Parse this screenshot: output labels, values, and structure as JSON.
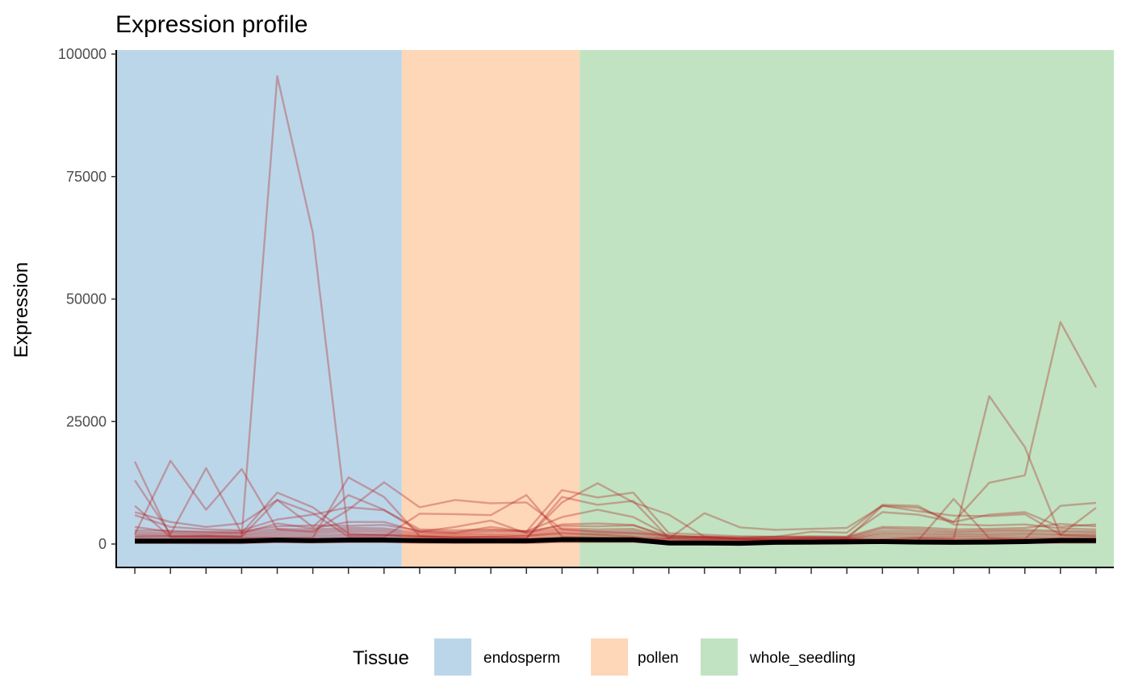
{
  "chart_data": {
    "type": "line",
    "title": "Expression profile",
    "xlabel": "",
    "ylabel": "Expression",
    "ylim": [
      -4000,
      100500
    ],
    "yticks": [
      0,
      25000,
      50000,
      75000,
      100000
    ],
    "ytick_labels": [
      "0",
      "25000",
      "50000",
      "75000",
      "100000"
    ],
    "x_positions": [
      1,
      2,
      3,
      4,
      5,
      6,
      7,
      8,
      9,
      10,
      11,
      12,
      13,
      14,
      15,
      16,
      17,
      18,
      19,
      20,
      21,
      22,
      23,
      24,
      25,
      26,
      27,
      28
    ],
    "x_tick_labels_shown": false,
    "grid": false,
    "background_bands": [
      {
        "tissue": "endosperm",
        "from": 0.5,
        "to": 8.5,
        "color": "#bcd6e9"
      },
      {
        "tissue": "pollen",
        "from": 8.5,
        "to": 13.5,
        "color": "#fdd7b8"
      },
      {
        "tissue": "whole_seedling",
        "from": 13.5,
        "to": 28.5,
        "color": "#c1e3c1"
      }
    ],
    "legend": {
      "title": "Tissue",
      "position": "bottom",
      "entries": [
        {
          "label": "endosperm",
          "color": "#bcd6e9"
        },
        {
          "label": "pollen",
          "color": "#fdd7b8"
        },
        {
          "label": "whole_seedling",
          "color": "#c1e3c1"
        }
      ]
    },
    "gene_line_color": "#b22222",
    "mean_line_color": "#000000",
    "series": [
      {
        "values": [
          1500,
          1600,
          1700,
          1500,
          95500,
          63500,
          1800,
          1900,
          1600,
          1400,
          1500,
          1700,
          2200,
          1900,
          1500,
          600,
          800,
          600,
          900,
          1000,
          1100,
          700,
          900,
          800,
          1000,
          900,
          1200,
          1100
        ]
      },
      {
        "values": [
          16800,
          1500,
          1400,
          1300,
          1200,
          1300,
          13600,
          9600,
          1600,
          1300,
          1500,
          1200,
          8500,
          12400,
          8500,
          6000,
          1500,
          1000,
          900,
          1200,
          1000,
          7800,
          7400,
          4500,
          12500,
          14000,
          45300,
          32000
        ]
      },
      {
        "values": [
          13000,
          2000,
          15500,
          2200,
          10500,
          7500,
          2100,
          1800,
          1500,
          1300,
          1200,
          1100,
          9600,
          8000,
          8800,
          1200,
          1100,
          900,
          800,
          700,
          700,
          900,
          1300,
          1100,
          30200,
          19800,
          1800,
          1600
        ]
      },
      {
        "values": [
          2000,
          17000,
          7000,
          15300,
          3000,
          2500,
          7000,
          12600,
          7500,
          9000,
          8300,
          8500,
          3000,
          2500,
          2200,
          1800,
          1300,
          1100,
          900,
          1000,
          1100,
          800,
          700,
          9200,
          1200,
          1000,
          7800,
          8400
        ]
      },
      {
        "values": [
          7800,
          1400,
          1600,
          1500,
          9000,
          6300,
          1500,
          1400,
          6200,
          6100,
          5900,
          10000,
          1500,
          1300,
          1200,
          1100,
          6300,
          3400,
          2900,
          3100,
          3300,
          7800,
          6700,
          5800,
          5700,
          6100,
          1900,
          7400
        ]
      },
      {
        "values": [
          6500,
          4500,
          3500,
          4200,
          9000,
          3500,
          10000,
          7000,
          2500,
          2300,
          3500,
          2500,
          11000,
          9500,
          10500,
          2200,
          1900,
          1600,
          1500,
          2500,
          2300,
          8000,
          7800,
          4000,
          3800,
          4000,
          3200,
          3000
        ]
      },
      {
        "values": [
          5900,
          3500,
          3000,
          2800,
          5000,
          6000,
          7500,
          6900,
          3000,
          2800,
          3000,
          2600,
          5500,
          7000,
          5500,
          1700,
          1500,
          1400,
          1500,
          1600,
          1500,
          6500,
          6000,
          4500,
          6000,
          6500,
          3500,
          4000
        ]
      },
      {
        "values": [
          3500,
          2500,
          2400,
          2200,
          4200,
          3200,
          4500,
          4500,
          2500,
          3500,
          4800,
          2200,
          4000,
          4200,
          3900,
          1300,
          1500,
          1200,
          1500,
          1400,
          1500,
          3500,
          3400,
          3000,
          3100,
          3300,
          4100,
          3600
        ]
      },
      {
        "values": [
          2800,
          2700,
          2500,
          2600,
          3600,
          3800,
          3700,
          3900,
          2700,
          2400,
          2800,
          2600,
          3700,
          3600,
          3800,
          1600,
          1400,
          1200,
          1300,
          1400,
          1300,
          3200,
          3000,
          2600,
          2800,
          2900,
          2700,
          2600
        ]
      },
      {
        "values": [
          2400,
          2200,
          2100,
          2300,
          3100,
          3000,
          3300,
          3200,
          2300,
          2100,
          2500,
          2300,
          3200,
          3000,
          3100,
          1400,
          1300,
          1100,
          1200,
          1300,
          1200,
          2700,
          2600,
          2300,
          2500,
          2600,
          2400,
          2300
        ]
      },
      {
        "values": [
          2000,
          1900,
          1800,
          1900,
          2700,
          2600,
          2900,
          2800,
          2000,
          1900,
          2100,
          1900,
          2800,
          2600,
          2700,
          1200,
          1100,
          900,
          1000,
          1100,
          1000,
          2300,
          2200,
          2000,
          2100,
          2200,
          2000,
          2000
        ]
      },
      {
        "values": [
          1700,
          1600,
          1500,
          1600,
          2300,
          2200,
          2500,
          2400,
          1700,
          1600,
          1800,
          1600,
          2400,
          2200,
          2300,
          1000,
          900,
          800,
          900,
          900,
          900,
          2000,
          1900,
          1700,
          1800,
          1900,
          1800,
          1700
        ]
      },
      {
        "values": [
          1300,
          1200,
          1200,
          1200,
          1900,
          1800,
          2000,
          1900,
          1400,
          1300,
          1400,
          1300,
          2000,
          1900,
          1900,
          800,
          700,
          600,
          700,
          700,
          700,
          1600,
          1500,
          1400,
          1500,
          1500,
          1400,
          1400
        ]
      },
      {
        "values": [
          1000,
          900,
          900,
          900,
          1500,
          1400,
          1600,
          1500,
          1100,
          1000,
          1100,
          1000,
          1600,
          1500,
          1500,
          600,
          500,
          400,
          500,
          500,
          500,
          1200,
          1200,
          1100,
          1200,
          1200,
          1100,
          1100
        ]
      },
      {
        "values": [
          700,
          700,
          600,
          600,
          1100,
          1000,
          1200,
          1100,
          800,
          700,
          800,
          700,
          1200,
          1100,
          1100,
          400,
          300,
          300,
          300,
          300,
          300,
          900,
          900,
          800,
          900,
          900,
          800,
          800
        ]
      },
      {
        "values": [
          400,
          400,
          300,
          300,
          700,
          600,
          800,
          700,
          500,
          400,
          500,
          400,
          800,
          700,
          700,
          200,
          150,
          100,
          150,
          150,
          150,
          600,
          600,
          500,
          600,
          600,
          500,
          500
        ]
      },
      {
        "values": [
          200,
          200,
          150,
          150,
          400,
          300,
          400,
          400,
          250,
          200,
          250,
          200,
          400,
          400,
          400,
          100,
          80,
          60,
          80,
          80,
          80,
          300,
          300,
          250,
          300,
          300,
          250,
          250
        ]
      }
    ],
    "mean_series": {
      "values": [
        600,
        600,
        600,
        600,
        800,
        700,
        800,
        800,
        700,
        650,
        650,
        650,
        900,
        850,
        850,
        200,
        200,
        150,
        350,
        400,
        450,
        500,
        400,
        350,
        400,
        500,
        700,
        700
      ]
    }
  }
}
